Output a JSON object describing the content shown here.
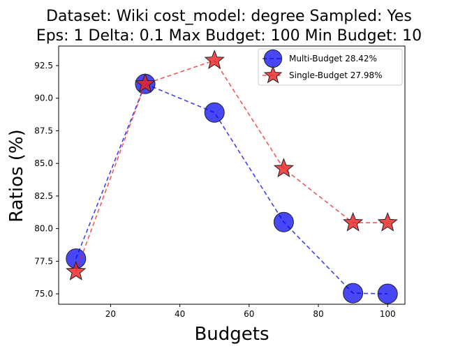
{
  "chart_data": {
    "type": "line",
    "title_line1": "Dataset: Wiki cost_model: degree Sampled: Yes",
    "title_line2": "Eps: 1 Delta: 0.1 Max Budget: 100 Min Budget: 10",
    "xlabel": "Budgets",
    "ylabel": "Ratios (%)",
    "xlim": [
      5,
      105
    ],
    "ylim": [
      74.2,
      94.0
    ],
    "xticks": [
      20,
      40,
      60,
      80,
      100
    ],
    "yticks": [
      75.0,
      77.5,
      80.0,
      82.5,
      85.0,
      87.5,
      90.0,
      92.5
    ],
    "xtick_labels": [
      "20",
      "40",
      "60",
      "80",
      "100"
    ],
    "ytick_labels": [
      "75.0",
      "77.5",
      "80.0",
      "82.5",
      "85.0",
      "87.5",
      "90.0",
      "92.5"
    ],
    "legend_position": "upper right",
    "series": [
      {
        "name": "Multi-Budget 28.42%",
        "marker": "circle",
        "color": "#0000ee",
        "x": [
          10,
          30,
          50,
          70,
          90,
          100
        ],
        "y": [
          77.7,
          91.1,
          88.9,
          80.5,
          75.05,
          75.0
        ]
      },
      {
        "name": "Single-Budget 27.98%",
        "marker": "star",
        "color": "#ee2222",
        "x": [
          10,
          30,
          50,
          70,
          90,
          100
        ],
        "y": [
          76.7,
          91.1,
          92.9,
          84.6,
          80.45,
          80.45
        ]
      }
    ]
  }
}
